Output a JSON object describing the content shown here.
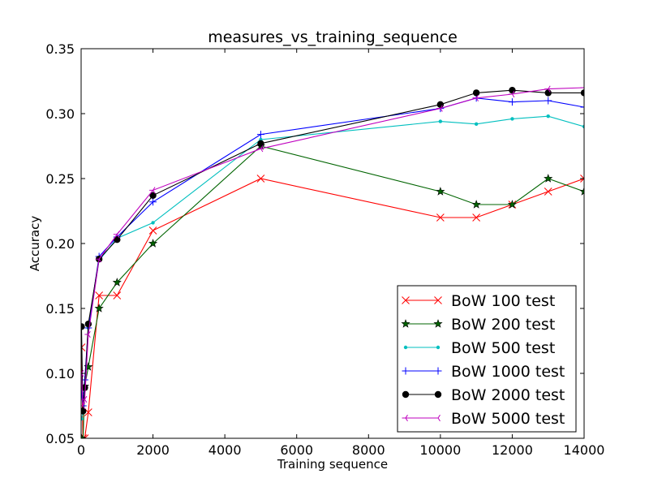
{
  "chart_data": {
    "type": "line",
    "title": "measures_vs_training_sequence",
    "xlabel": "Training sequence",
    "ylabel": "Accuracy",
    "xlim": [
      0,
      14000
    ],
    "ylim": [
      0.05,
      0.35
    ],
    "xticks": [
      0,
      2000,
      4000,
      6000,
      8000,
      10000,
      12000,
      14000
    ],
    "xtick_labels": [
      "0",
      "2000",
      "4000",
      "6000",
      "8000",
      "10000",
      "12000",
      "14000"
    ],
    "yticks": [
      0.05,
      0.1,
      0.15,
      0.2,
      0.25,
      0.3,
      0.35
    ],
    "ytick_labels": [
      "0.05",
      "0.10",
      "0.15",
      "0.20",
      "0.25",
      "0.30",
      "0.35"
    ],
    "grid": false,
    "legend_position": "lower-right",
    "series": [
      {
        "name": "BoW 100 test",
        "color": "#ff0000",
        "marker": "x",
        "x": [
          10,
          50,
          100,
          200,
          500,
          1000,
          2000,
          5000,
          10000,
          11000,
          12000,
          13000,
          14000
        ],
        "y": [
          0.12,
          0.05,
          0.05,
          0.07,
          0.16,
          0.16,
          0.21,
          0.25,
          0.22,
          0.22,
          0.23,
          0.24,
          0.25
        ]
      },
      {
        "name": "BoW 200 test",
        "color": "#006400",
        "marker": "star",
        "x": [
          10,
          50,
          100,
          200,
          500,
          1000,
          2000,
          5000,
          10000,
          11000,
          12000,
          13000,
          14000
        ],
        "y": [
          0.05,
          0.045,
          0.09,
          0.105,
          0.15,
          0.17,
          0.2,
          0.275,
          0.24,
          0.23,
          0.23,
          0.25,
          0.24
        ]
      },
      {
        "name": "BoW 500 test",
        "color": "#00bfbf",
        "marker": "dot",
        "x": [
          10,
          50,
          100,
          200,
          500,
          1000,
          2000,
          5000,
          10000,
          11000,
          12000,
          13000,
          14000
        ],
        "y": [
          0.065,
          0.07,
          0.09,
          0.135,
          0.187,
          0.204,
          0.216,
          0.28,
          0.294,
          0.292,
          0.296,
          0.298,
          0.29
        ]
      },
      {
        "name": "BoW 1000 test",
        "color": "#0000ff",
        "marker": "plus",
        "x": [
          10,
          50,
          100,
          200,
          500,
          1000,
          2000,
          5000,
          10000,
          11000,
          12000,
          13000,
          14000
        ],
        "y": [
          0.085,
          0.075,
          0.095,
          0.135,
          0.19,
          0.205,
          0.232,
          0.284,
          0.304,
          0.312,
          0.309,
          0.31,
          0.305
        ]
      },
      {
        "name": "BoW 2000 test",
        "color": "#000000",
        "marker": "circle",
        "x": [
          10,
          50,
          100,
          200,
          500,
          1000,
          2000,
          5000,
          10000,
          11000,
          12000,
          13000,
          14000
        ],
        "y": [
          0.136,
          0.071,
          0.089,
          0.138,
          0.188,
          0.203,
          0.237,
          0.277,
          0.307,
          0.316,
          0.318,
          0.316,
          0.316
        ]
      },
      {
        "name": "BoW 5000 test",
        "color": "#bf00bf",
        "marker": "tri-left",
        "x": [
          10,
          50,
          100,
          200,
          500,
          1000,
          2000,
          5000,
          10000,
          11000,
          12000,
          13000,
          14000
        ],
        "y": [
          0.1,
          0.075,
          0.08,
          0.13,
          0.188,
          0.207,
          0.241,
          0.273,
          0.304,
          0.312,
          0.315,
          0.319,
          0.32
        ]
      }
    ]
  }
}
